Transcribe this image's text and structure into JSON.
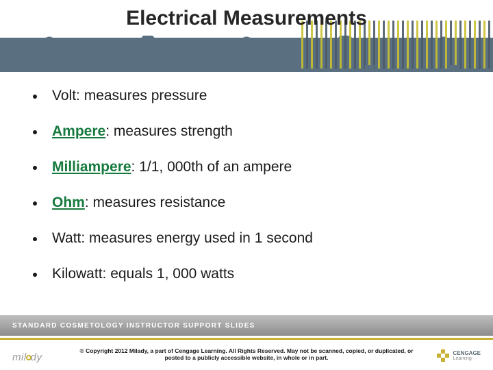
{
  "title": "Electrical Measurements",
  "bullets": [
    {
      "term": null,
      "text": "Volt: measures pressure"
    },
    {
      "term": "Ampere",
      "text": ": measures strength"
    },
    {
      "term": "Milliampere",
      "text": ": 1/1, 000th of an ampere"
    },
    {
      "term": "Ohm",
      "text": ": measures resistance"
    },
    {
      "term": null,
      "text": "Watt: measures energy used in 1 second"
    },
    {
      "term": null,
      "text": "Kilowatt: equals 1, 000 watts"
    }
  ],
  "footer": {
    "tag": "MILADY",
    "band": "STANDARD COSMETOLOGY INSTRUCTOR SUPPORT SLIDES",
    "copyright": "© Copyright 2012 Milady, a part of Cengage Learning. All Rights Reserved. May not be scanned, copied, or duplicated, or posted to a publicly accessible website, in whole or in part.",
    "logo_left": "milady",
    "logo_right_top": "CENGAGE",
    "logo_right_bottom": "Learning"
  },
  "style": {
    "slide_width": 720,
    "slide_height": 540,
    "title_fontsize": 30,
    "title_color": "#262626",
    "body_fontsize": 21,
    "body_color": "#1a1a1a",
    "link_color": "#167a3e",
    "header_bg": "#5a7080",
    "accent_yellow": "#c8b030",
    "band_gradient_top": "#bfbfbf",
    "band_gradient_bottom": "#8c8c8c",
    "copyright_fontsize": 8.5,
    "bullet_spacing": 28
  }
}
